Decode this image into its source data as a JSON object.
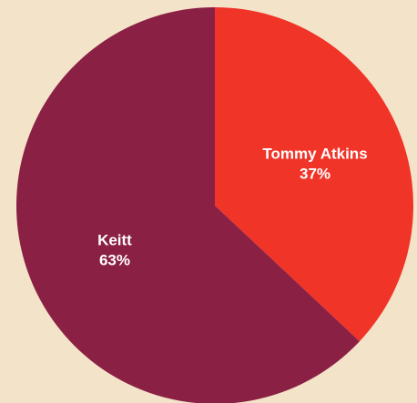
{
  "chart_data": {
    "type": "pie",
    "slices": [
      {
        "name": "Tommy Atkins",
        "value": 37,
        "percent_label": "37%",
        "color": "#f03428"
      },
      {
        "name": "Keitt",
        "value": 63,
        "percent_label": "63%",
        "color": "#8b2045"
      }
    ],
    "legend": "none"
  }
}
